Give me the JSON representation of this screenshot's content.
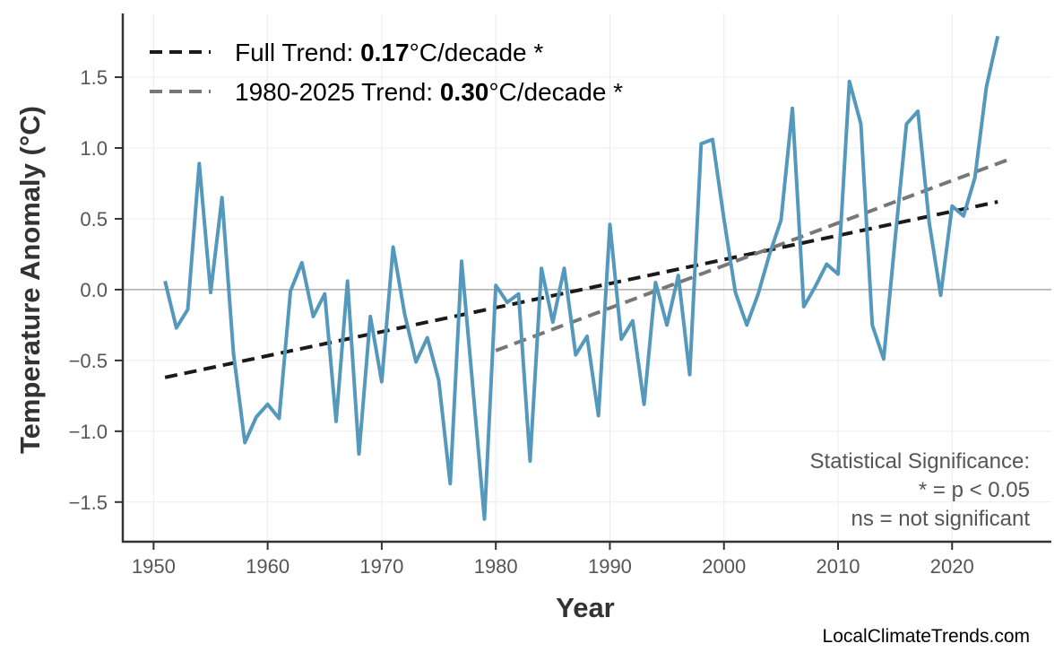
{
  "chart_data": {
    "type": "line",
    "title": "",
    "xlabel": "Year",
    "ylabel": "Temperature Anomaly (°C)",
    "xlim": [
      1947.3,
      2028.7
    ],
    "ylim": [
      -1.78,
      1.95
    ],
    "grid": true,
    "legend_position": "top-left",
    "x_ticks": [
      1950,
      1960,
      1970,
      1980,
      1990,
      2000,
      2010,
      2020
    ],
    "x_tick_labels": [
      "1950",
      "1960",
      "1970",
      "1980",
      "1990",
      "2000",
      "2010",
      "2020"
    ],
    "y_ticks": [
      -1.5,
      -1.0,
      -0.5,
      0.0,
      0.5,
      1.0,
      1.5
    ],
    "y_tick_labels": [
      "−1.5",
      "−1.0",
      "−0.5",
      "0.0",
      "0.5",
      "1.0",
      "1.5"
    ],
    "series": [
      {
        "color": "#5499bc",
        "x": [
          1951,
          1952,
          1953,
          1954,
          1955,
          1956,
          1957,
          1958,
          1959,
          1960,
          1961,
          1962,
          1963,
          1964,
          1965,
          1966,
          1967,
          1968,
          1969,
          1970,
          1971,
          1972,
          1973,
          1974,
          1975,
          1976,
          1977,
          1978,
          1979,
          1980,
          1981,
          1982,
          1983,
          1984,
          1985,
          1986,
          1987,
          1988,
          1989,
          1990,
          1991,
          1992,
          1993,
          1994,
          1995,
          1996,
          1997,
          1998,
          1999,
          2000,
          2001,
          2002,
          2003,
          2004,
          2005,
          2006,
          2007,
          2008,
          2009,
          2010,
          2011,
          2012,
          2013,
          2014,
          2015,
          2016,
          2017,
          2018,
          2019,
          2020,
          2021,
          2022,
          2023,
          2024
        ],
        "values": [
          0.06,
          -0.27,
          -0.14,
          0.89,
          -0.02,
          0.65,
          -0.45,
          -1.08,
          -0.9,
          -0.81,
          -0.91,
          -0.01,
          0.19,
          -0.19,
          -0.03,
          -0.93,
          0.06,
          -1.16,
          -0.19,
          -0.65,
          0.3,
          -0.17,
          -0.51,
          -0.34,
          -0.64,
          -1.37,
          0.2,
          -0.7,
          -1.62,
          0.03,
          -0.09,
          -0.03,
          -1.21,
          0.15,
          -0.23,
          0.15,
          -0.46,
          -0.33,
          -0.89,
          0.46,
          -0.35,
          -0.22,
          -0.81,
          0.05,
          -0.25,
          0.1,
          -0.6,
          1.03,
          1.06,
          0.5,
          -0.02,
          -0.25,
          -0.03,
          0.25,
          0.49,
          1.28,
          -0.12,
          0.02,
          0.18,
          0.11,
          1.47,
          1.17,
          -0.25,
          -0.49,
          0.35,
          1.17,
          1.26,
          0.47,
          -0.04,
          0.59,
          0.52,
          0.79,
          1.43,
          1.79
        ]
      }
    ],
    "trend_lines": [
      {
        "name": "Full Trend",
        "color": "#1a1a1a",
        "x": [
          1951,
          2024
        ],
        "values": [
          -0.62,
          0.62
        ]
      },
      {
        "name": "1980-2025 Trend",
        "color": "#777777",
        "x": [
          1980,
          2025
        ],
        "values": [
          -0.43,
          0.92
        ]
      }
    ],
    "legend": [
      {
        "prefix": "Full Trend: ",
        "value": "0.17",
        "suffix": "°C/decade *",
        "color": "#1a1a1a"
      },
      {
        "prefix": "1980-2025 Trend: ",
        "value": "0.30",
        "suffix": "°C/decade *",
        "color": "#777777"
      }
    ],
    "annotation": [
      "Statistical Significance:",
      "* = p < 0.05",
      "ns = not significant"
    ],
    "watermark": "LocalClimateTrends.com"
  }
}
